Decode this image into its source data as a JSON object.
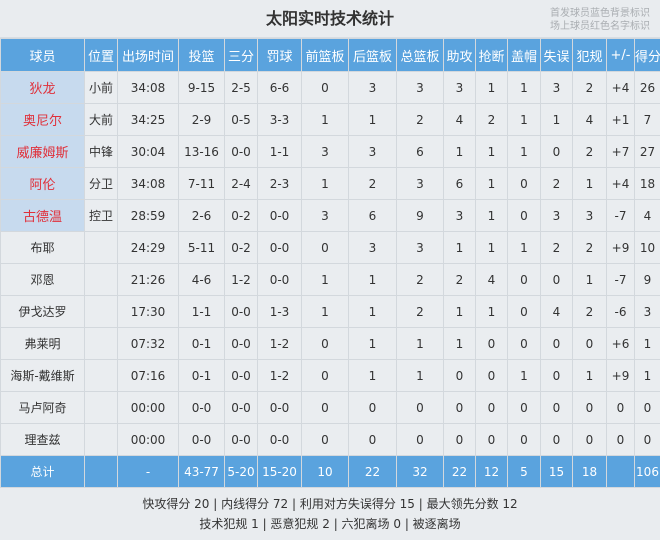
{
  "title": "太阳实时技术统计",
  "notes": [
    "首发球员蓝色背景标识",
    "场上球员红色名字标识"
  ],
  "colors": {
    "header": "#5aa3de",
    "starter_bg": "#c7daee",
    "on_court_name": "#e0303a"
  },
  "columns": [
    "球员",
    "位置",
    "出场时间",
    "投篮",
    "三分",
    "罚球",
    "前篮板",
    "后篮板",
    "总篮板",
    "助攻",
    "抢断",
    "盖帽",
    "失误",
    "犯规",
    "+/-",
    "得分"
  ],
  "players": [
    {
      "starter": true,
      "cells": [
        "狄龙",
        "小前",
        "34:08",
        "9-15",
        "2-5",
        "6-6",
        "0",
        "3",
        "3",
        "3",
        "1",
        "1",
        "3",
        "2",
        "+4",
        "26"
      ]
    },
    {
      "starter": true,
      "cells": [
        "奥尼尔",
        "大前",
        "34:25",
        "2-9",
        "0-5",
        "3-3",
        "1",
        "1",
        "2",
        "4",
        "2",
        "1",
        "1",
        "4",
        "+1",
        "7"
      ]
    },
    {
      "starter": true,
      "cells": [
        "威廉姆斯",
        "中锋",
        "30:04",
        "13-16",
        "0-0",
        "1-1",
        "3",
        "3",
        "6",
        "1",
        "1",
        "1",
        "0",
        "2",
        "+7",
        "27"
      ]
    },
    {
      "starter": true,
      "cells": [
        "阿伦",
        "分卫",
        "34:08",
        "7-11",
        "2-4",
        "2-3",
        "1",
        "2",
        "3",
        "6",
        "1",
        "0",
        "2",
        "1",
        "+4",
        "18"
      ]
    },
    {
      "starter": true,
      "cells": [
        "古德温",
        "控卫",
        "28:59",
        "2-6",
        "0-2",
        "0-0",
        "3",
        "6",
        "9",
        "3",
        "1",
        "0",
        "3",
        "3",
        "-7",
        "4"
      ]
    },
    {
      "starter": false,
      "cells": [
        "布耶",
        "",
        "24:29",
        "5-11",
        "0-2",
        "0-0",
        "0",
        "3",
        "3",
        "1",
        "1",
        "1",
        "2",
        "2",
        "+9",
        "10"
      ]
    },
    {
      "starter": false,
      "cells": [
        "邓恩",
        "",
        "21:26",
        "4-6",
        "1-2",
        "0-0",
        "1",
        "1",
        "2",
        "2",
        "4",
        "0",
        "0",
        "1",
        "-7",
        "9"
      ]
    },
    {
      "starter": false,
      "cells": [
        "伊戈达罗",
        "",
        "17:30",
        "1-1",
        "0-0",
        "1-3",
        "1",
        "1",
        "2",
        "1",
        "1",
        "0",
        "4",
        "2",
        "-6",
        "3"
      ]
    },
    {
      "starter": false,
      "cells": [
        "弗莱明",
        "",
        "07:32",
        "0-1",
        "0-0",
        "1-2",
        "0",
        "1",
        "1",
        "1",
        "0",
        "0",
        "0",
        "0",
        "+6",
        "1"
      ]
    },
    {
      "starter": false,
      "cells": [
        "海斯-戴维斯",
        "",
        "07:16",
        "0-1",
        "0-0",
        "1-2",
        "0",
        "1",
        "1",
        "0",
        "0",
        "1",
        "0",
        "1",
        "+9",
        "1"
      ]
    },
    {
      "starter": false,
      "cells": [
        "马卢阿奇",
        "",
        "00:00",
        "0-0",
        "0-0",
        "0-0",
        "0",
        "0",
        "0",
        "0",
        "0",
        "0",
        "0",
        "0",
        "0",
        "0"
      ]
    },
    {
      "starter": false,
      "cells": [
        "理查兹",
        "",
        "00:00",
        "0-0",
        "0-0",
        "0-0",
        "0",
        "0",
        "0",
        "0",
        "0",
        "0",
        "0",
        "0",
        "0",
        "0"
      ]
    }
  ],
  "totals": [
    "总计",
    "",
    "-",
    "43-77",
    "5-20",
    "15-20",
    "10",
    "22",
    "32",
    "22",
    "12",
    "5",
    "15",
    "18",
    "",
    "106"
  ],
  "footer": [
    "快攻得分 20 | 内线得分 72 | 利用对方失误得分 15 | 最大领先分数 12",
    "技术犯规 1 | 恶意犯规 2 | 六犯离场 0 | 被逐离场"
  ]
}
